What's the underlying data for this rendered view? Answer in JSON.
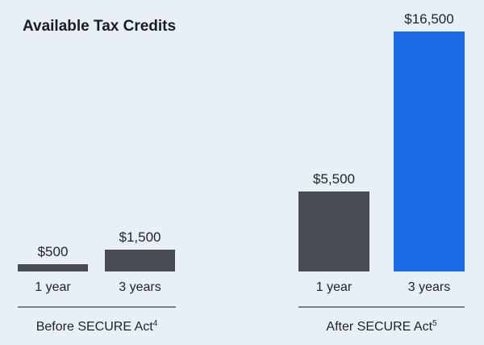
{
  "chart_data": {
    "type": "bar",
    "title": "Available Tax Credits",
    "ylim": [
      0,
      16500
    ],
    "groups": [
      {
        "label": "Before SECURE Act",
        "footnote": "4",
        "bars": [
          {
            "category": "1 year",
            "value": 500,
            "value_label": "$500",
            "color": "#474c52"
          },
          {
            "category": "3 years",
            "value": 1500,
            "value_label": "$1,500",
            "color": "#474c52"
          }
        ]
      },
      {
        "label": "After SECURE Act",
        "footnote": "5",
        "bars": [
          {
            "category": "1 year",
            "value": 5500,
            "value_label": "$5,500",
            "color": "#474c52"
          },
          {
            "category": "3 years",
            "value": 16500,
            "value_label": "$16,500",
            "color": "#1d6ae5"
          }
        ]
      }
    ],
    "grid": false,
    "legend": "none"
  }
}
